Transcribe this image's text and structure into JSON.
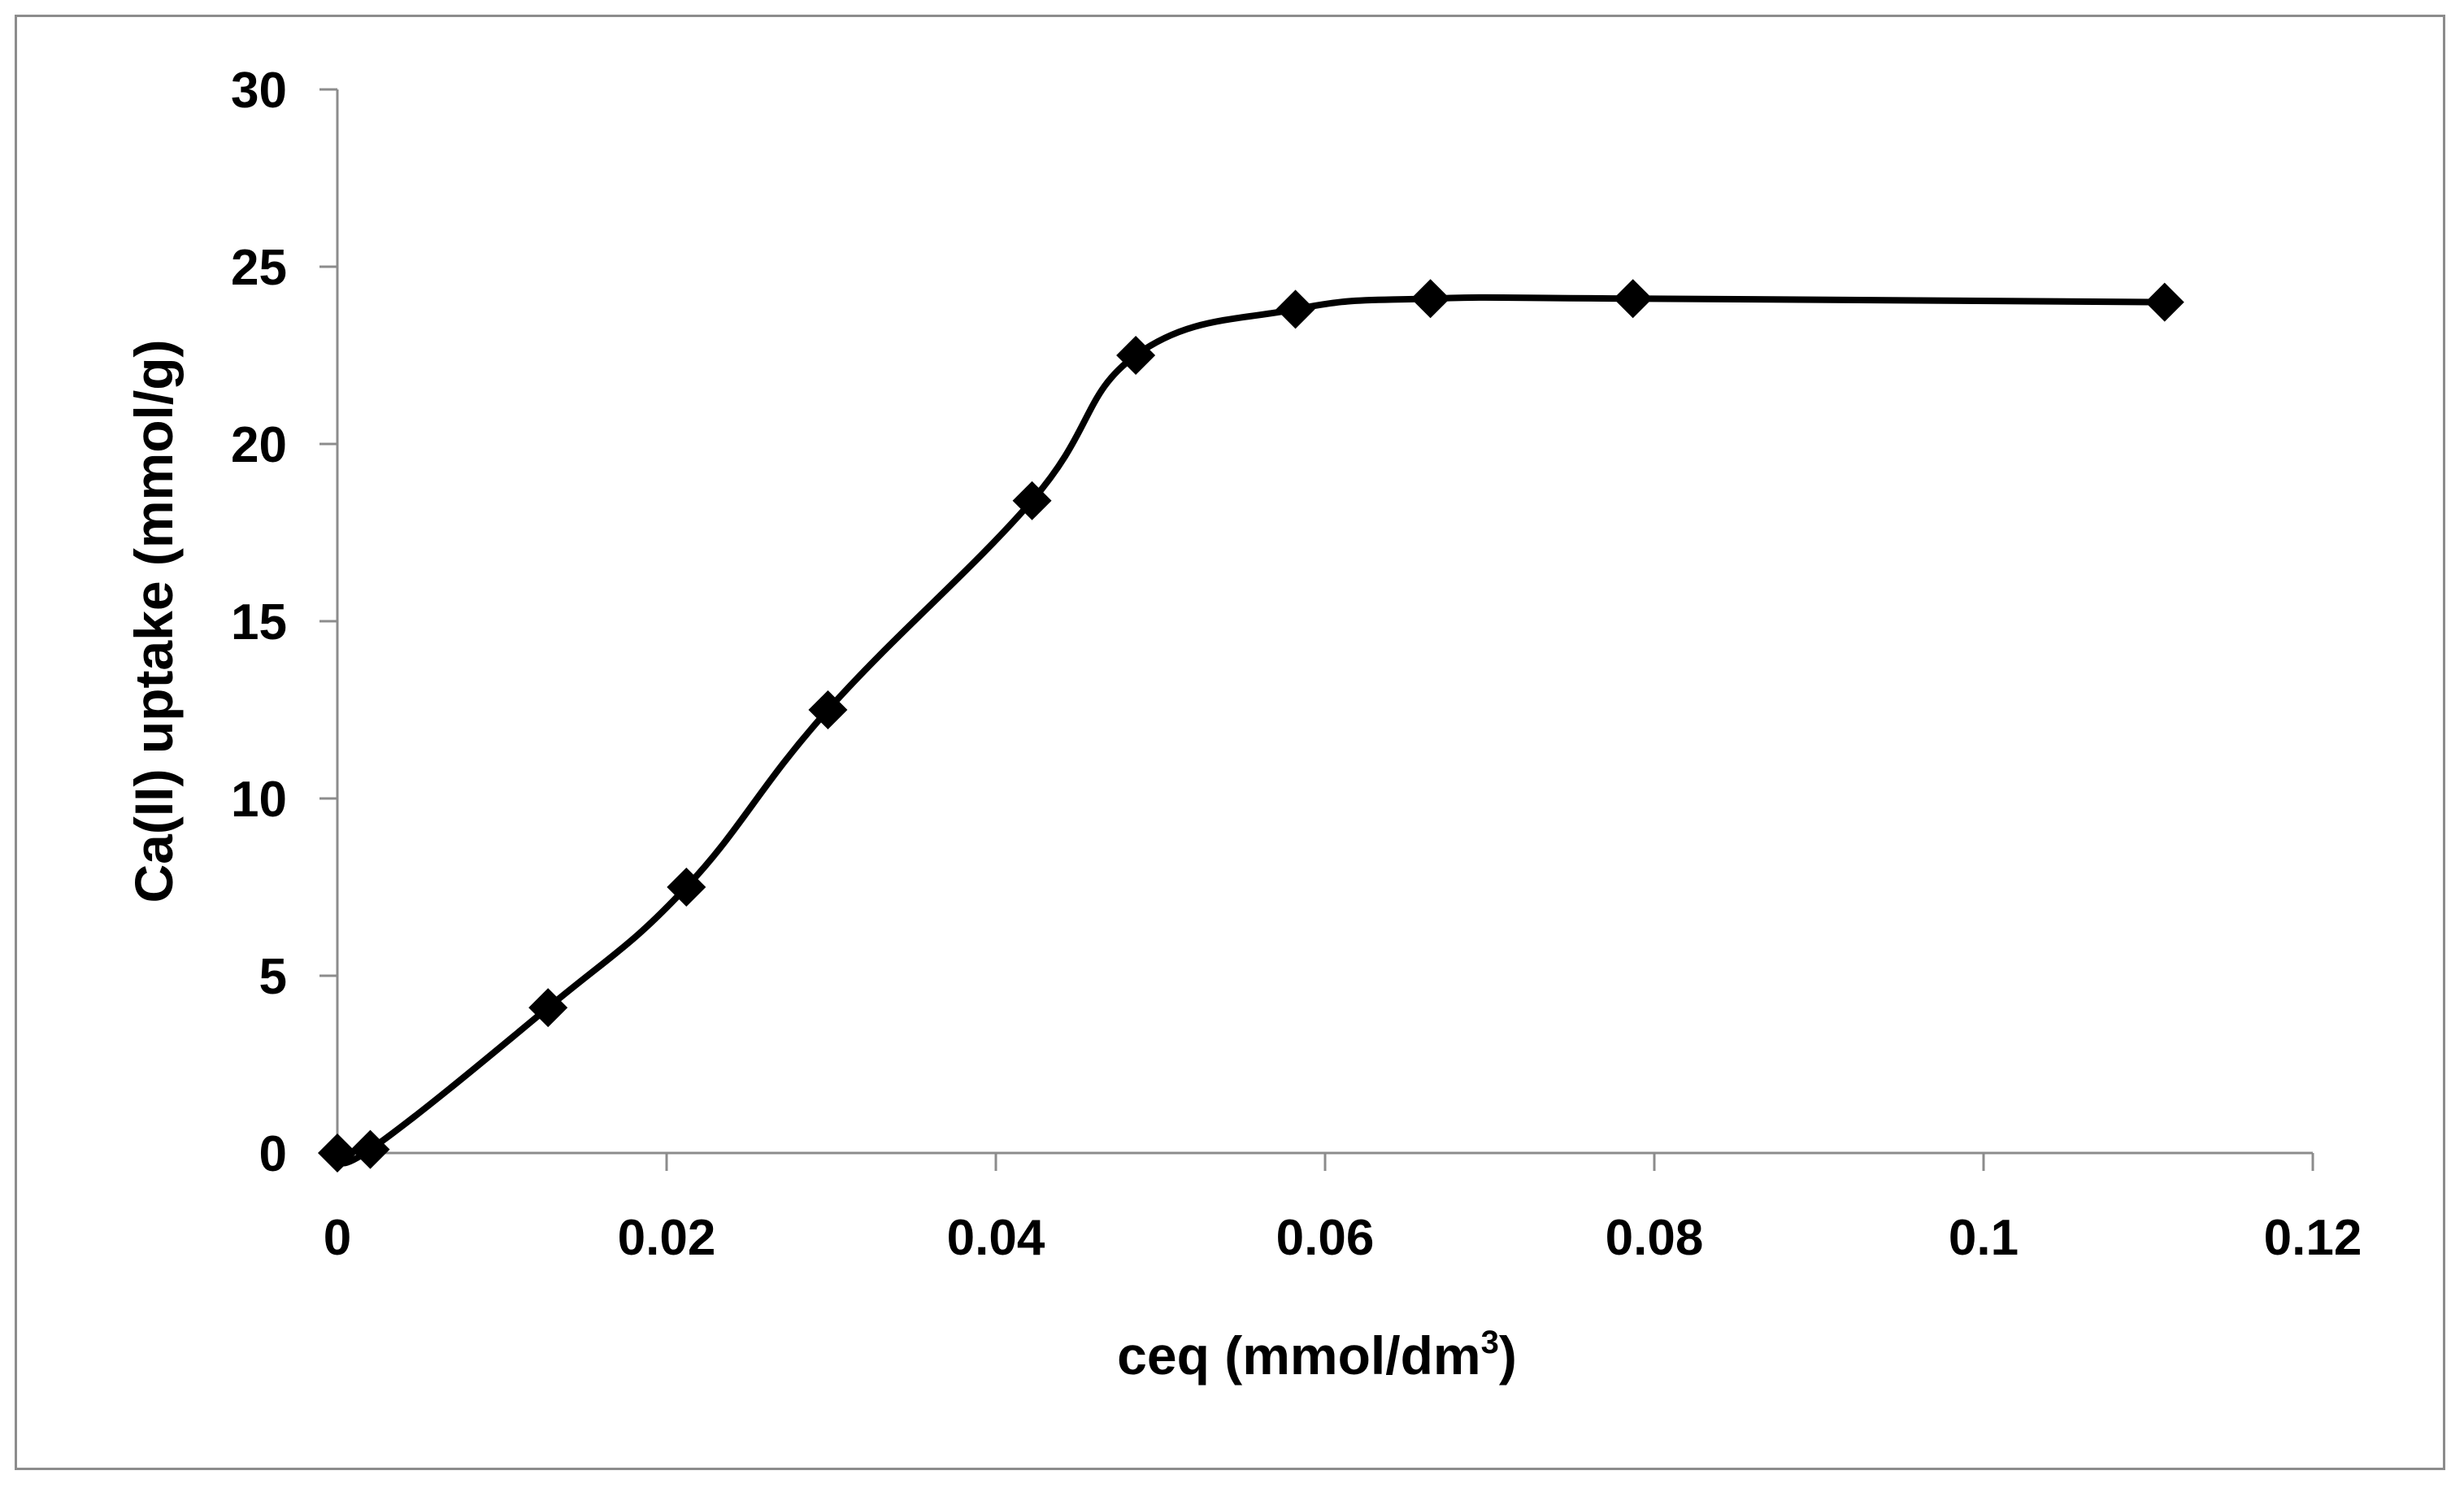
{
  "chart_data": {
    "type": "scatter",
    "title": "",
    "xlabel": "ceq (mmol/dm",
    "xlabel_sup": "3",
    "xlabel_end": ")",
    "ylabel": "Ca(II) uptake (mmol/g)",
    "xlim": [
      0,
      0.12
    ],
    "ylim": [
      0,
      30
    ],
    "xticks": [
      0,
      0.02,
      0.04,
      0.06,
      0.08,
      0.1,
      0.12
    ],
    "xtick_labels": [
      "0",
      "0.02",
      "0.04",
      "0.06",
      "0.08",
      "0.1",
      "0.12"
    ],
    "yticks": [
      0,
      5,
      10,
      15,
      20,
      25,
      30
    ],
    "ytick_labels": [
      "0",
      "5",
      "10",
      "15",
      "20",
      "25",
      "30"
    ],
    "grid": false,
    "legend": "none",
    "series": [
      {
        "x": [
          0,
          0.002,
          0.0128,
          0.0212,
          0.0298,
          0.0422,
          0.0485,
          0.0582,
          0.0664,
          0.0787,
          0.111
        ],
        "y": [
          0,
          0.1,
          4.1,
          7.5,
          12.5,
          18.4,
          22.5,
          23.8,
          24.1,
          24.1,
          24.0
        ],
        "color": "#000000",
        "marker": "diamond",
        "line": "smooth"
      }
    ]
  }
}
